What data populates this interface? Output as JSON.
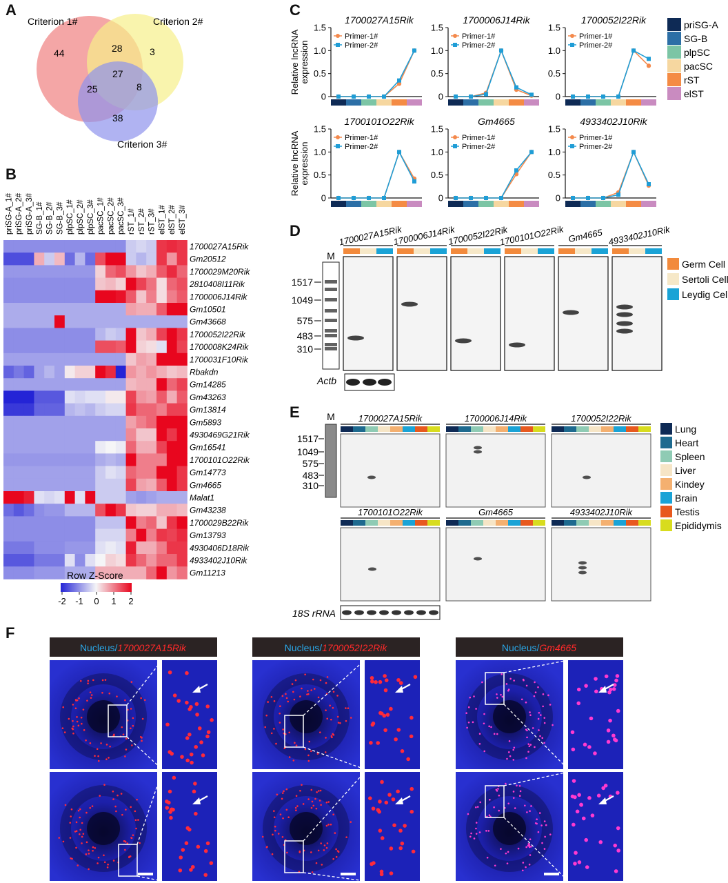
{
  "panels": {
    "A": "A",
    "B": "B",
    "C": "C",
    "D": "D",
    "E": "E",
    "F": "F"
  },
  "venn": {
    "labels": [
      "Criterion 1#",
      "Criterion 2#",
      "Criterion 3#"
    ],
    "counts": {
      "c1_only": "44",
      "c12": "28",
      "c2_only": "3",
      "c123": "27",
      "c13": "25",
      "c23": "8",
      "c3_only": "38"
    },
    "colors": [
      "#f08080",
      "#f6ef8a",
      "#8f93ec"
    ]
  },
  "heatmap": {
    "columns": [
      "priSG-A_1#",
      "priSG-A_2#",
      "priSG-A_3#",
      "SG-B_1#",
      "SG-B_2#",
      "SG-B_3#",
      "plpSC_1#",
      "plpSC_2#",
      "plpSC_3#",
      "pacSC_1#",
      "pacSC_2#",
      "pacSC_3#",
      "rST_1#",
      "rST_2#",
      "rST_3#",
      "elST_1#",
      "elST_2#",
      "elST_3#"
    ],
    "rows": [
      "1700027A15Rik",
      "Gm20512",
      "1700029M20Rik",
      "2810408I11Rik",
      "1700006J14Rik",
      "Gm10501",
      "Gm43668",
      "1700052I22Rik",
      "1700008K24Rik",
      "1700031F10Rik",
      "Rbakdn",
      "Gm14285",
      "Gm43263",
      "Gm13814",
      "Gm5893",
      "4930469G21Rik",
      "Gm16541",
      "1700101O22Rik",
      "Gm14773",
      "Gm4665",
      "Malat1",
      "Gm43238",
      "1700029B22Rik",
      "Gm13793",
      "4930406D18Rik",
      "4933402J10Rik",
      "Gm11213"
    ],
    "values": [
      [
        -1,
        -1,
        -1,
        -1,
        -1,
        -1,
        -1,
        -1,
        -1,
        -1,
        -1,
        -1,
        -0.4,
        -0.3,
        -0.4,
        1.6,
        1.7,
        1.6
      ],
      [
        -1.6,
        -1.6,
        -1.6,
        0.6,
        -0.4,
        0.5,
        -1.3,
        -0.6,
        -1.3,
        1.4,
        2.0,
        2.0,
        -0.4,
        -0.6,
        -0.4,
        1.6,
        0.8,
        1.6
      ],
      [
        -0.9,
        -0.9,
        -0.9,
        -0.9,
        -0.9,
        -0.9,
        -0.9,
        -0.9,
        -0.9,
        0.3,
        1.2,
        1.4,
        0.8,
        0.4,
        0.6,
        1.3,
        1.7,
        1.2
      ],
      [
        -1,
        -1,
        -1,
        -1,
        -1,
        -1,
        -1,
        -1,
        -1,
        0.4,
        0.5,
        0.3,
        2.0,
        1.5,
        1.1,
        0.2,
        1.2,
        1.4
      ],
      [
        -1,
        -1,
        -1,
        -1,
        -1,
        -1,
        -1,
        -1,
        -1,
        2.0,
        2.0,
        1.9,
        1.3,
        0.4,
        1.0,
        0.2,
        1.0,
        1.3
      ],
      [
        -0.7,
        -0.7,
        -0.7,
        -0.7,
        -0.7,
        -0.7,
        -0.7,
        -0.7,
        -0.7,
        -0.7,
        -0.7,
        -0.7,
        0.7,
        0.6,
        0.6,
        1.3,
        2.0,
        2.0
      ],
      [
        -0.7,
        -0.7,
        -0.7,
        -0.7,
        -0.7,
        2.4,
        -0.7,
        -0.7,
        -0.7,
        -0.7,
        -0.7,
        -0.7,
        -0.7,
        -0.7,
        -0.7,
        -0.7,
        -0.7,
        -0.7
      ],
      [
        -1,
        -1,
        -1,
        -1,
        -1,
        -1,
        -1,
        -1,
        -1,
        -0.6,
        -0.4,
        -0.5,
        2.0,
        0.4,
        0.6,
        1.5,
        2.0,
        1.6
      ],
      [
        -1,
        -1,
        -1,
        -1,
        -1,
        -1,
        -1,
        -1,
        -1,
        1.4,
        1.4,
        1.3,
        2.0,
        0.3,
        0.2,
        -0.2,
        2.0,
        1.5
      ],
      [
        -0.8,
        -0.8,
        -0.8,
        -0.8,
        -0.8,
        -0.8,
        -0.8,
        -0.8,
        -0.8,
        -0.8,
        -0.8,
        -0.8,
        0.4,
        0.7,
        0.6,
        2.0,
        2.0,
        2.0
      ],
      [
        -1.4,
        -1.2,
        -1.4,
        -0.8,
        -0.6,
        -0.8,
        0.1,
        0.3,
        0.3,
        2.0,
        1.7,
        -2.5,
        0.8,
        0.6,
        0.8,
        0.6,
        0.4,
        0.5
      ],
      [
        -0.8,
        -0.8,
        -0.8,
        -0.8,
        -0.8,
        -0.8,
        -0.8,
        -0.8,
        -0.8,
        -0.8,
        -0.8,
        -0.8,
        0.5,
        0.6,
        0.6,
        2.0,
        1.2,
        1.5
      ],
      [
        -2.0,
        -2.0,
        -2.0,
        -1.5,
        -1.5,
        -1.5,
        -0.2,
        -0.3,
        -0.2,
        -0.2,
        0.1,
        0.1,
        1.5,
        0.8,
        0.7,
        1.3,
        0.6,
        1.3
      ],
      [
        -1.8,
        -1.8,
        -1.8,
        -1.4,
        -1.4,
        -1.4,
        -0.6,
        -0.5,
        -0.6,
        -0.4,
        -0.3,
        -0.3,
        1.6,
        1.2,
        1.2,
        1.0,
        1.5,
        1.5
      ],
      [
        -0.8,
        -0.8,
        -0.8,
        -0.8,
        -0.8,
        -0.8,
        -0.8,
        -0.8,
        -0.8,
        -0.8,
        -0.8,
        -0.8,
        0.7,
        1.0,
        1.2,
        2.0,
        2.0,
        2.0
      ],
      [
        -0.8,
        -0.8,
        -0.8,
        -0.8,
        -0.8,
        -0.8,
        -0.8,
        -0.8,
        -0.8,
        -0.8,
        -0.8,
        -0.8,
        0.9,
        0.4,
        0.4,
        2.0,
        1.6,
        2.0
      ],
      [
        -0.8,
        -0.8,
        -0.8,
        -0.8,
        -0.8,
        -0.8,
        -0.8,
        -0.8,
        -0.8,
        -0.1,
        0.0,
        -0.1,
        1.2,
        0.6,
        0.6,
        1.5,
        2.0,
        2.0
      ],
      [
        -0.9,
        -0.9,
        -0.9,
        -0.9,
        -0.9,
        -0.9,
        -0.9,
        -0.9,
        -0.9,
        -0.7,
        -0.6,
        -0.7,
        2.0,
        1.0,
        1.0,
        1.0,
        2.0,
        2.0
      ],
      [
        -0.8,
        -0.8,
        -0.8,
        -0.8,
        -0.8,
        -0.8,
        -0.8,
        -0.8,
        -0.8,
        -0.4,
        -0.2,
        -0.3,
        1.2,
        1.0,
        1.0,
        2.0,
        2.0,
        1.6
      ],
      [
        -0.8,
        -0.8,
        -0.8,
        -0.8,
        -0.8,
        -0.8,
        -0.8,
        -0.8,
        -0.8,
        -0.4,
        -0.4,
        -0.4,
        1.5,
        0.7,
        0.6,
        1.3,
        2.0,
        1.6
      ],
      [
        2.0,
        2.0,
        1.8,
        -0.2,
        -0.3,
        -0.2,
        2.0,
        -0.2,
        2.0,
        -0.4,
        -0.4,
        -0.4,
        -0.8,
        -0.9,
        -0.8,
        -0.7,
        -0.7,
        -0.7
      ],
      [
        -1.3,
        -1.5,
        -1.3,
        -1.0,
        -0.9,
        -0.9,
        -0.6,
        -0.6,
        -0.6,
        1.4,
        2.0,
        1.6,
        0.4,
        0.3,
        0.3,
        0.6,
        0.6,
        0.5
      ],
      [
        -1,
        -1,
        -1,
        -1,
        -1,
        -1,
        -1,
        -1,
        -1,
        -0.5,
        -0.5,
        -0.5,
        2.0,
        1.0,
        1.2,
        0.4,
        1.6,
        2.0
      ],
      [
        -1,
        -1,
        -1,
        -1,
        -1,
        -1,
        -1,
        -1,
        -1,
        -0.3,
        -0.3,
        -0.3,
        1.0,
        2.0,
        1.0,
        1.6,
        1.5,
        1.7
      ],
      [
        -1.2,
        -1.2,
        -1.2,
        -1.0,
        -1.0,
        -1.0,
        -0.9,
        -0.9,
        -0.9,
        -0.2,
        -0.1,
        -0.2,
        1.8,
        0.6,
        0.6,
        1.0,
        1.6,
        1.6
      ],
      [
        -1.5,
        -1.5,
        -1.5,
        -1.2,
        -1.2,
        -1.2,
        -0.2,
        -1.0,
        -0.2,
        0.0,
        0.3,
        0.2,
        1.6,
        1.2,
        0.8,
        1.2,
        1.2,
        1.6
      ],
      [
        -1.0,
        -1.0,
        -1.0,
        -0.9,
        -0.9,
        -0.9,
        -0.7,
        -0.7,
        -0.7,
        0.6,
        0.6,
        0.6,
        0.6,
        0.6,
        1.2,
        2.0,
        0.8,
        1.1
      ]
    ],
    "colorbar": {
      "title": "Row Z-Score",
      "ticks": [
        "-2",
        "-1",
        "0",
        "1",
        "2"
      ],
      "low": "#2424d6",
      "mid": "#f5f5f7",
      "high": "#e8061e"
    }
  },
  "chart_data": {
    "type": "line",
    "categories": [
      "priSG-A",
      "SG-B",
      "plpSC",
      "pacSC",
      "rST",
      "elST"
    ],
    "category_colors": [
      "#0e2a55",
      "#2c6fa6",
      "#7cc5a5",
      "#f6d7a0",
      "#f48b44",
      "#c98bc0"
    ],
    "ylabel": "Relative lncRNA expression",
    "ylim": [
      0,
      1.5
    ],
    "yticks": [
      "0",
      "0.5",
      "1.0",
      "1.5"
    ],
    "series_colors": [
      "#f4894c",
      "#1f9dd6"
    ],
    "panels": [
      {
        "title": "1700027A15Rik",
        "series": [
          {
            "name": "Primer-1#",
            "values": [
              0,
              0,
              0,
              0,
              0.28,
              1.0
            ]
          },
          {
            "name": "Primer-2#",
            "values": [
              0,
              0,
              0,
              0,
              0.35,
              1.0
            ]
          }
        ]
      },
      {
        "title": "1700006J14Rik",
        "series": [
          {
            "name": "Primer-1#",
            "values": [
              0,
              0,
              0.08,
              1.0,
              0.15,
              0.02
            ]
          },
          {
            "name": "Primer-2#",
            "values": [
              0,
              0,
              0.05,
              1.0,
              0.2,
              0.04
            ]
          }
        ]
      },
      {
        "title": "1700052I22Rik",
        "series": [
          {
            "name": "Primer-1#",
            "values": [
              0,
              0,
              0,
              0,
              1.0,
              0.67
            ]
          },
          {
            "name": "Primer-2#",
            "values": [
              0,
              0,
              0,
              0,
              1.0,
              0.82
            ]
          }
        ]
      },
      {
        "title": "1700101O22Rik",
        "series": [
          {
            "name": "Primer-1#",
            "values": [
              0,
              0,
              0,
              0,
              1.0,
              0.42
            ]
          },
          {
            "name": "Primer-2#",
            "values": [
              0,
              0,
              0,
              0,
              1.0,
              0.36
            ]
          }
        ]
      },
      {
        "title": "Gm4665",
        "series": [
          {
            "name": "Primer-1#",
            "values": [
              0,
              0,
              0,
              0,
              0.52,
              1.0
            ]
          },
          {
            "name": "Primer-2#",
            "values": [
              0,
              0,
              0,
              0,
              0.6,
              1.0
            ]
          }
        ]
      },
      {
        "title": "4933402J10Rik",
        "series": [
          {
            "name": "Primer-1#",
            "values": [
              0,
              0,
              0,
              0.12,
              1.0,
              0.27
            ]
          },
          {
            "name": "Primer-2#",
            "values": [
              0,
              0,
              0,
              0.07,
              1.0,
              0.3
            ]
          }
        ]
      }
    ]
  },
  "northern_d": {
    "marker_label": "M",
    "sizes": [
      "1517",
      "1049",
      "575",
      "483",
      "310"
    ],
    "genes": [
      "1700027A15Rik",
      "1700006J14Rik",
      "1700052I22Rik",
      "1700101O22Rik",
      "Gm4665",
      "4933402J10Rik"
    ],
    "legend": [
      "Germ Cell",
      "Sertoli Cell",
      "Leydig Cell"
    ],
    "legend_colors": [
      "#f28a3c",
      "#f6e8c8",
      "#1aa3d6"
    ],
    "loading_label": "Actb"
  },
  "northern_e": {
    "marker_label": "M",
    "sizes": [
      "1517",
      "1049",
      "575",
      "483",
      "310"
    ],
    "genes": [
      "1700027A15Rik",
      "1700006J14Rik",
      "1700052I22Rik",
      "1700101O22Rik",
      "Gm4665",
      "4933402J10Rik"
    ],
    "legend": [
      "Lung",
      "Heart",
      "Spleen",
      "Liver",
      "Kindey",
      "Brain",
      "Testis",
      "Epididymis"
    ],
    "legend_colors": [
      "#0e2a55",
      "#1e6a8f",
      "#8fcbb4",
      "#f6e5c6",
      "#f4b070",
      "#1aa3d6",
      "#e8591e",
      "#d8dc1e"
    ],
    "loading_label": "18S rRNA"
  },
  "fish": {
    "prefix": "Nucleus/",
    "genes": [
      "1700027A15Rik",
      "1700052I22Rik",
      "Gm4665"
    ]
  }
}
